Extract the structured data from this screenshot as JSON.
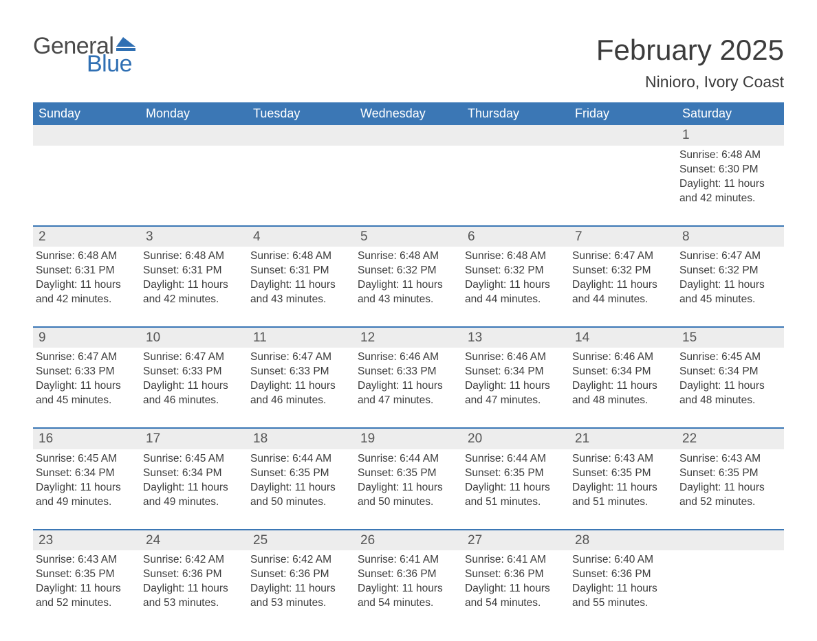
{
  "logo": {
    "line1": "General",
    "line2": "Blue",
    "text_color": "#4a4a4a",
    "accent_color": "#2f6fb3"
  },
  "title": {
    "month_year": "February 2025",
    "location": "Ninioro, Ivory Coast"
  },
  "styling": {
    "header_bg": "#3b77b5",
    "header_text": "#ffffff",
    "daynum_bg": "#ededed",
    "daynum_text": "#555555",
    "body_text": "#3c3c3c",
    "week_divider": "#3b77b5",
    "page_bg": "#ffffff",
    "title_fontsize": 42,
    "location_fontsize": 23,
    "weekday_fontsize": 18,
    "body_fontsize": 15.5,
    "daynum_fontsize": 19
  },
  "weekdays": [
    "Sunday",
    "Monday",
    "Tuesday",
    "Wednesday",
    "Thursday",
    "Friday",
    "Saturday"
  ],
  "weeks": [
    [
      null,
      null,
      null,
      null,
      null,
      null,
      {
        "n": "1",
        "sunrise": "Sunrise: 6:48 AM",
        "sunset": "Sunset: 6:30 PM",
        "day1": "Daylight: 11 hours",
        "day2": "and 42 minutes."
      }
    ],
    [
      {
        "n": "2",
        "sunrise": "Sunrise: 6:48 AM",
        "sunset": "Sunset: 6:31 PM",
        "day1": "Daylight: 11 hours",
        "day2": "and 42 minutes."
      },
      {
        "n": "3",
        "sunrise": "Sunrise: 6:48 AM",
        "sunset": "Sunset: 6:31 PM",
        "day1": "Daylight: 11 hours",
        "day2": "and 42 minutes."
      },
      {
        "n": "4",
        "sunrise": "Sunrise: 6:48 AM",
        "sunset": "Sunset: 6:31 PM",
        "day1": "Daylight: 11 hours",
        "day2": "and 43 minutes."
      },
      {
        "n": "5",
        "sunrise": "Sunrise: 6:48 AM",
        "sunset": "Sunset: 6:32 PM",
        "day1": "Daylight: 11 hours",
        "day2": "and 43 minutes."
      },
      {
        "n": "6",
        "sunrise": "Sunrise: 6:48 AM",
        "sunset": "Sunset: 6:32 PM",
        "day1": "Daylight: 11 hours",
        "day2": "and 44 minutes."
      },
      {
        "n": "7",
        "sunrise": "Sunrise: 6:47 AM",
        "sunset": "Sunset: 6:32 PM",
        "day1": "Daylight: 11 hours",
        "day2": "and 44 minutes."
      },
      {
        "n": "8",
        "sunrise": "Sunrise: 6:47 AM",
        "sunset": "Sunset: 6:32 PM",
        "day1": "Daylight: 11 hours",
        "day2": "and 45 minutes."
      }
    ],
    [
      {
        "n": "9",
        "sunrise": "Sunrise: 6:47 AM",
        "sunset": "Sunset: 6:33 PM",
        "day1": "Daylight: 11 hours",
        "day2": "and 45 minutes."
      },
      {
        "n": "10",
        "sunrise": "Sunrise: 6:47 AM",
        "sunset": "Sunset: 6:33 PM",
        "day1": "Daylight: 11 hours",
        "day2": "and 46 minutes."
      },
      {
        "n": "11",
        "sunrise": "Sunrise: 6:47 AM",
        "sunset": "Sunset: 6:33 PM",
        "day1": "Daylight: 11 hours",
        "day2": "and 46 minutes."
      },
      {
        "n": "12",
        "sunrise": "Sunrise: 6:46 AM",
        "sunset": "Sunset: 6:33 PM",
        "day1": "Daylight: 11 hours",
        "day2": "and 47 minutes."
      },
      {
        "n": "13",
        "sunrise": "Sunrise: 6:46 AM",
        "sunset": "Sunset: 6:34 PM",
        "day1": "Daylight: 11 hours",
        "day2": "and 47 minutes."
      },
      {
        "n": "14",
        "sunrise": "Sunrise: 6:46 AM",
        "sunset": "Sunset: 6:34 PM",
        "day1": "Daylight: 11 hours",
        "day2": "and 48 minutes."
      },
      {
        "n": "15",
        "sunrise": "Sunrise: 6:45 AM",
        "sunset": "Sunset: 6:34 PM",
        "day1": "Daylight: 11 hours",
        "day2": "and 48 minutes."
      }
    ],
    [
      {
        "n": "16",
        "sunrise": "Sunrise: 6:45 AM",
        "sunset": "Sunset: 6:34 PM",
        "day1": "Daylight: 11 hours",
        "day2": "and 49 minutes."
      },
      {
        "n": "17",
        "sunrise": "Sunrise: 6:45 AM",
        "sunset": "Sunset: 6:34 PM",
        "day1": "Daylight: 11 hours",
        "day2": "and 49 minutes."
      },
      {
        "n": "18",
        "sunrise": "Sunrise: 6:44 AM",
        "sunset": "Sunset: 6:35 PM",
        "day1": "Daylight: 11 hours",
        "day2": "and 50 minutes."
      },
      {
        "n": "19",
        "sunrise": "Sunrise: 6:44 AM",
        "sunset": "Sunset: 6:35 PM",
        "day1": "Daylight: 11 hours",
        "day2": "and 50 minutes."
      },
      {
        "n": "20",
        "sunrise": "Sunrise: 6:44 AM",
        "sunset": "Sunset: 6:35 PM",
        "day1": "Daylight: 11 hours",
        "day2": "and 51 minutes."
      },
      {
        "n": "21",
        "sunrise": "Sunrise: 6:43 AM",
        "sunset": "Sunset: 6:35 PM",
        "day1": "Daylight: 11 hours",
        "day2": "and 51 minutes."
      },
      {
        "n": "22",
        "sunrise": "Sunrise: 6:43 AM",
        "sunset": "Sunset: 6:35 PM",
        "day1": "Daylight: 11 hours",
        "day2": "and 52 minutes."
      }
    ],
    [
      {
        "n": "23",
        "sunrise": "Sunrise: 6:43 AM",
        "sunset": "Sunset: 6:35 PM",
        "day1": "Daylight: 11 hours",
        "day2": "and 52 minutes."
      },
      {
        "n": "24",
        "sunrise": "Sunrise: 6:42 AM",
        "sunset": "Sunset: 6:36 PM",
        "day1": "Daylight: 11 hours",
        "day2": "and 53 minutes."
      },
      {
        "n": "25",
        "sunrise": "Sunrise: 6:42 AM",
        "sunset": "Sunset: 6:36 PM",
        "day1": "Daylight: 11 hours",
        "day2": "and 53 minutes."
      },
      {
        "n": "26",
        "sunrise": "Sunrise: 6:41 AM",
        "sunset": "Sunset: 6:36 PM",
        "day1": "Daylight: 11 hours",
        "day2": "and 54 minutes."
      },
      {
        "n": "27",
        "sunrise": "Sunrise: 6:41 AM",
        "sunset": "Sunset: 6:36 PM",
        "day1": "Daylight: 11 hours",
        "day2": "and 54 minutes."
      },
      {
        "n": "28",
        "sunrise": "Sunrise: 6:40 AM",
        "sunset": "Sunset: 6:36 PM",
        "day1": "Daylight: 11 hours",
        "day2": "and 55 minutes."
      },
      null
    ]
  ]
}
